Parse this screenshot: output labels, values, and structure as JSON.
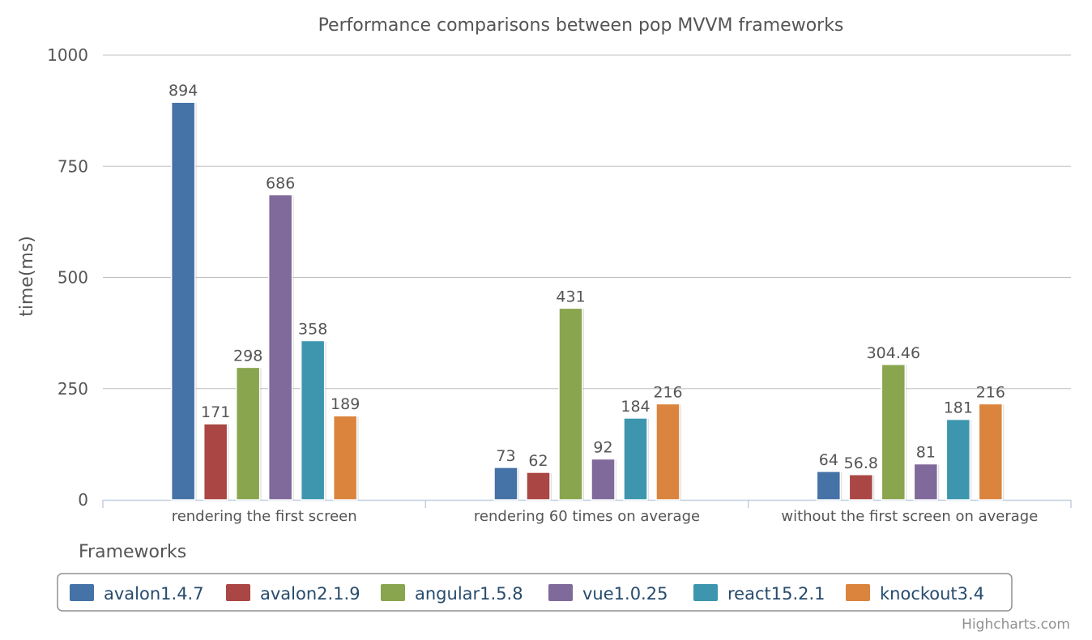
{
  "chart_data": {
    "type": "bar",
    "title": "Performance comparisons between pop MVVM frameworks",
    "xlabel": "Frameworks",
    "ylabel": "time(ms)",
    "ylim": [
      0,
      1000
    ],
    "yticks": [
      0,
      250,
      500,
      750,
      1000
    ],
    "grid": true,
    "legend_position": "bottom-center",
    "categories": [
      "rendering the first screen",
      "rendering 60 times on average",
      "without the first screen on average"
    ],
    "series": [
      {
        "name": "avalon1.4.7",
        "color": "#4572a7",
        "values": [
          894,
          73,
          64
        ],
        "labels": [
          "894",
          "73",
          "64"
        ]
      },
      {
        "name": "avalon2.1.9",
        "color": "#aa4643",
        "values": [
          171,
          62,
          56.8
        ],
        "labels": [
          "171",
          "62",
          "56.8"
        ]
      },
      {
        "name": "angular1.5.8",
        "color": "#89a54e",
        "values": [
          298,
          431,
          304.46
        ],
        "labels": [
          "298",
          "431",
          "304.46"
        ]
      },
      {
        "name": "vue1.0.25",
        "color": "#80699b",
        "values": [
          686,
          92,
          81
        ],
        "labels": [
          "686",
          "92",
          "81"
        ]
      },
      {
        "name": "react15.2.1",
        "color": "#3d96ae",
        "values": [
          358,
          184,
          181
        ],
        "labels": [
          "358",
          "184",
          "181"
        ]
      },
      {
        "name": "knockout3.4",
        "color": "#db843d",
        "values": [
          189,
          216,
          216
        ],
        "labels": [
          "189",
          "216",
          "216"
        ]
      }
    ],
    "credits": "Highcharts.com"
  }
}
